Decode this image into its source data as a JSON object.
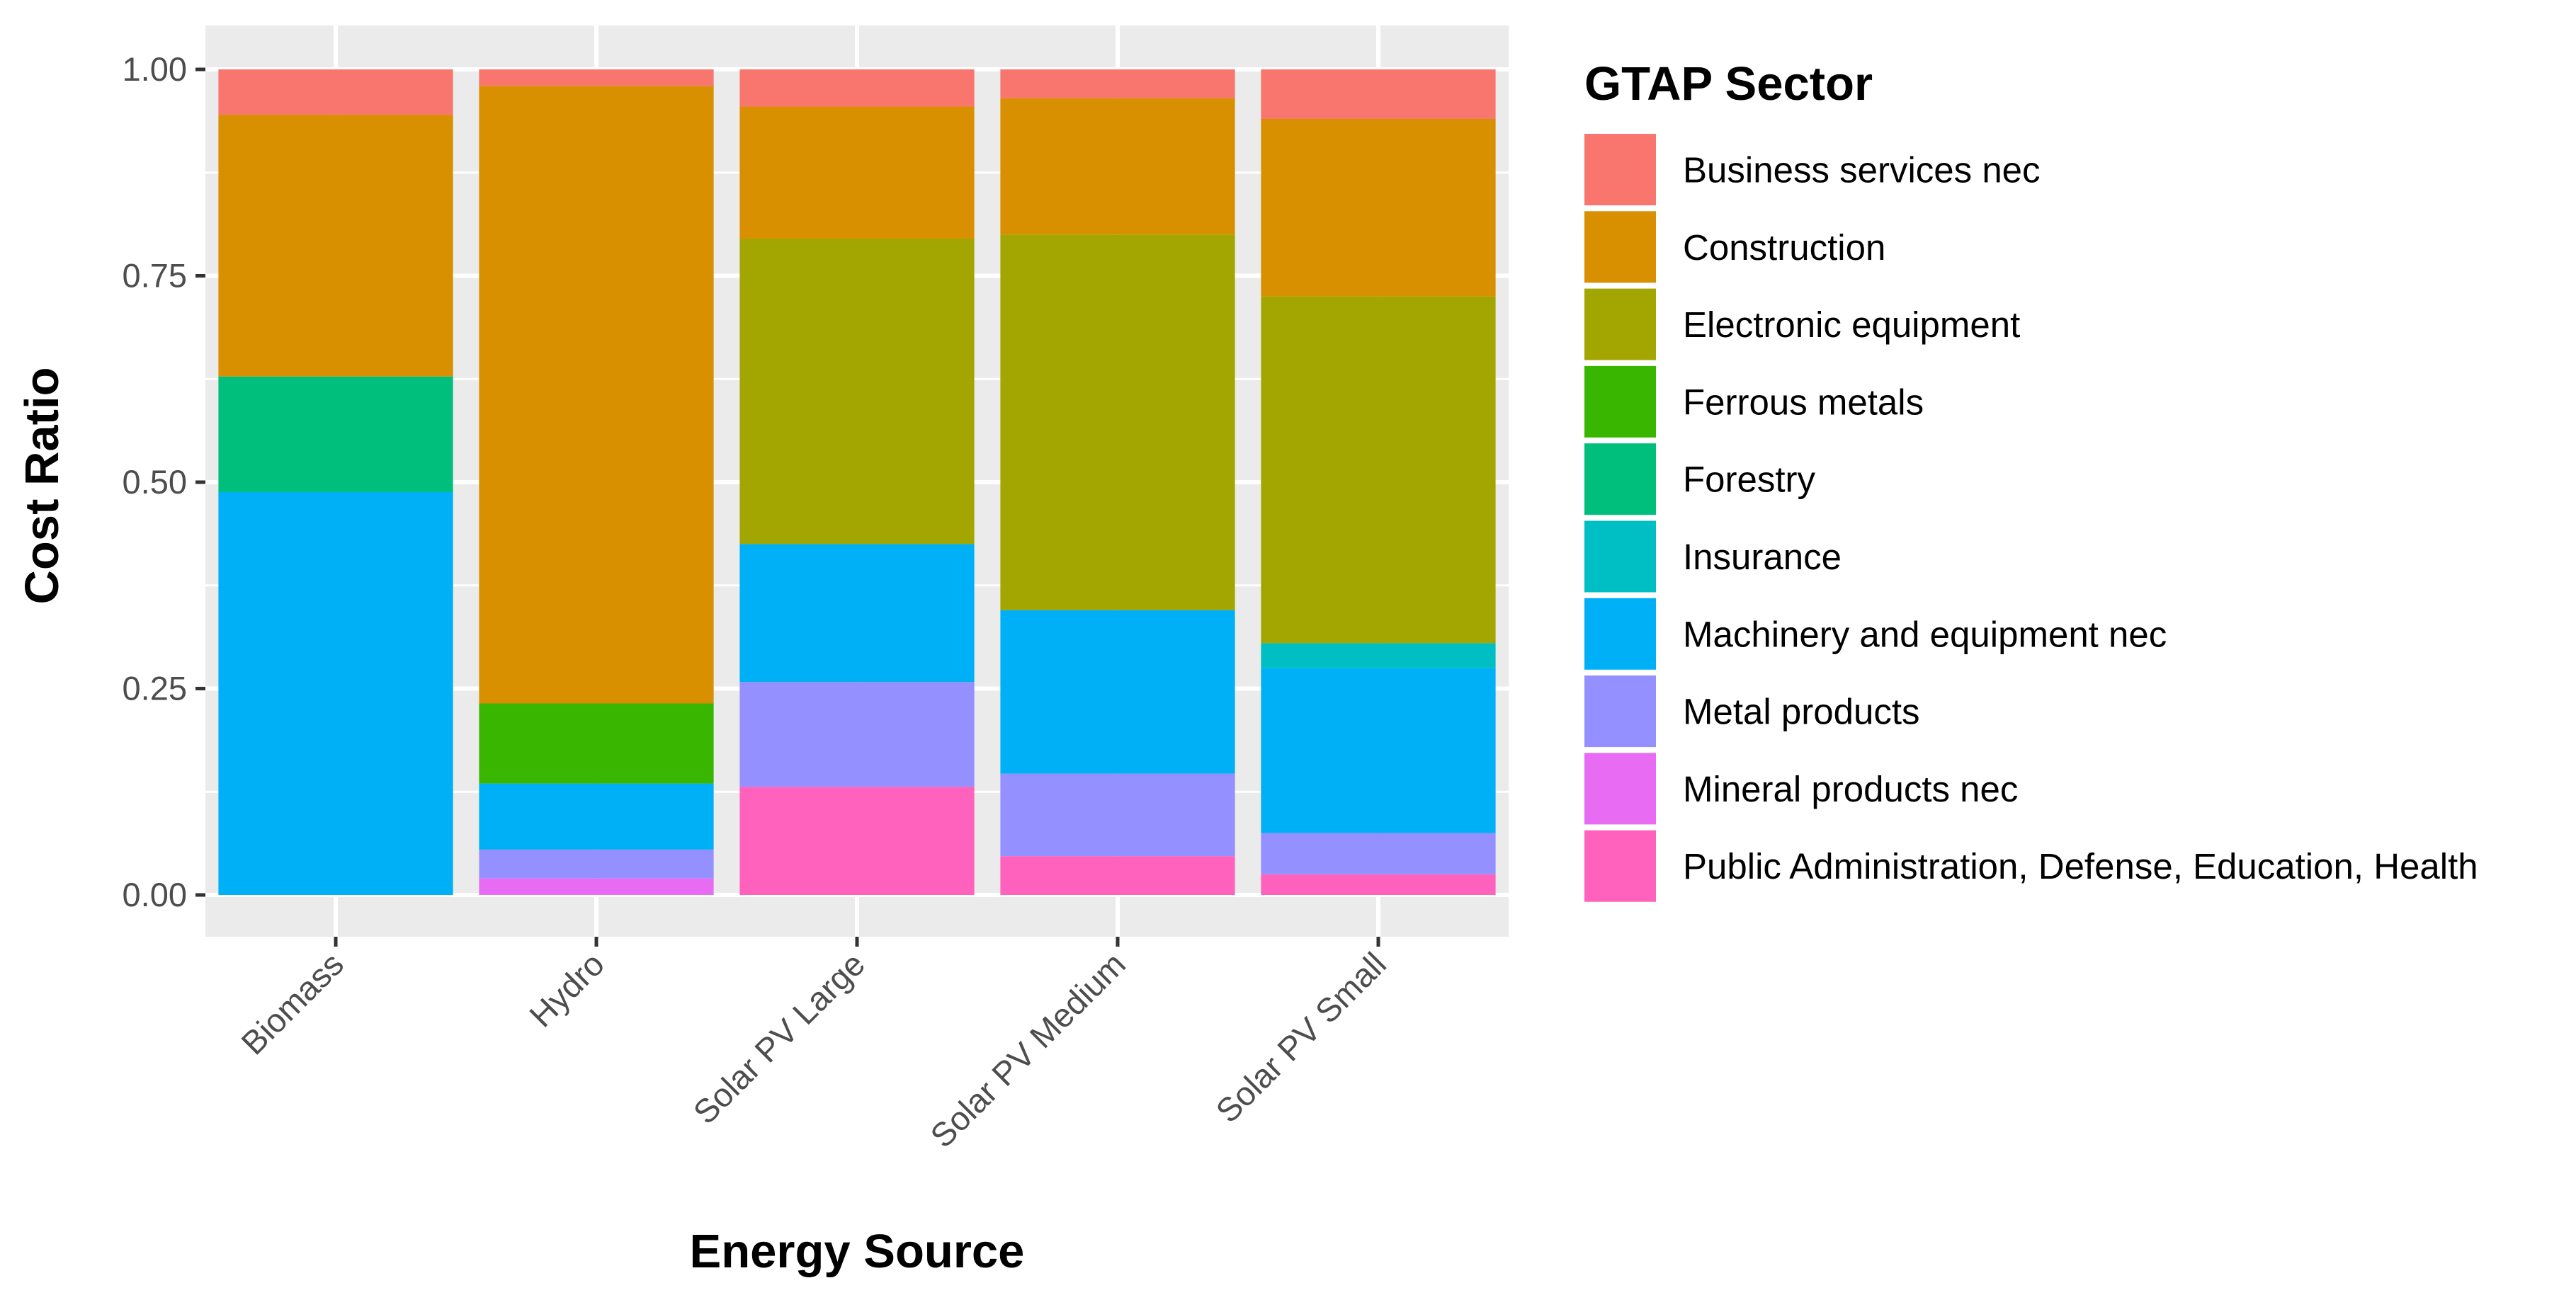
{
  "chart_data": {
    "type": "bar",
    "stacked": true,
    "xlabel": "Energy Source",
    "ylabel": "Cost Ratio",
    "ylim": [
      0,
      1.05
    ],
    "yticks": [
      "0.00",
      "0.25",
      "0.50",
      "0.75",
      "1.00"
    ],
    "ytick_values": [
      0,
      0.25,
      0.5,
      0.75,
      1.0
    ],
    "grid": true,
    "panel_background": "#EBEBEB",
    "legend": {
      "title": "GTAP Sector",
      "placement": "right"
    },
    "categories": [
      "Biomass",
      "Hydro",
      "Solar PV Large",
      "Solar PV Medium",
      "Solar PV Small"
    ],
    "series": [
      {
        "name": "Business services nec",
        "color": "#F8766D",
        "values": [
          0.055,
          0.02,
          0.045,
          0.035,
          0.06
        ]
      },
      {
        "name": "Construction",
        "color": "#D89000",
        "values": [
          0.317,
          0.748,
          0.16,
          0.165,
          0.215
        ]
      },
      {
        "name": "Electronic equipment",
        "color": "#A3A500",
        "values": [
          0,
          0,
          0.37,
          0.455,
          0.42
        ]
      },
      {
        "name": "Ferrous metals",
        "color": "#39B600",
        "values": [
          0,
          0.097,
          0,
          0,
          0
        ]
      },
      {
        "name": "Forestry",
        "color": "#00BF7D",
        "values": [
          0.14,
          0,
          0,
          0,
          0
        ]
      },
      {
        "name": "Insurance",
        "color": "#00BFC4",
        "values": [
          0,
          0,
          0,
          0,
          0.03
        ]
      },
      {
        "name": "Machinery and equipment nec",
        "color": "#00B0F6",
        "values": [
          0.488,
          0.08,
          0.167,
          0.198,
          0.2
        ]
      },
      {
        "name": "Metal products",
        "color": "#9590FF",
        "values": [
          0,
          0.035,
          0.127,
          0.1,
          0.05
        ]
      },
      {
        "name": "Mineral products nec",
        "color": "#E76BF3",
        "values": [
          0,
          0.02,
          0,
          0,
          0
        ]
      },
      {
        "name": "Public Administration, Defense, Education, Health",
        "color": "#FF62BC",
        "values": [
          0,
          0,
          0.131,
          0.047,
          0.025
        ]
      }
    ]
  }
}
